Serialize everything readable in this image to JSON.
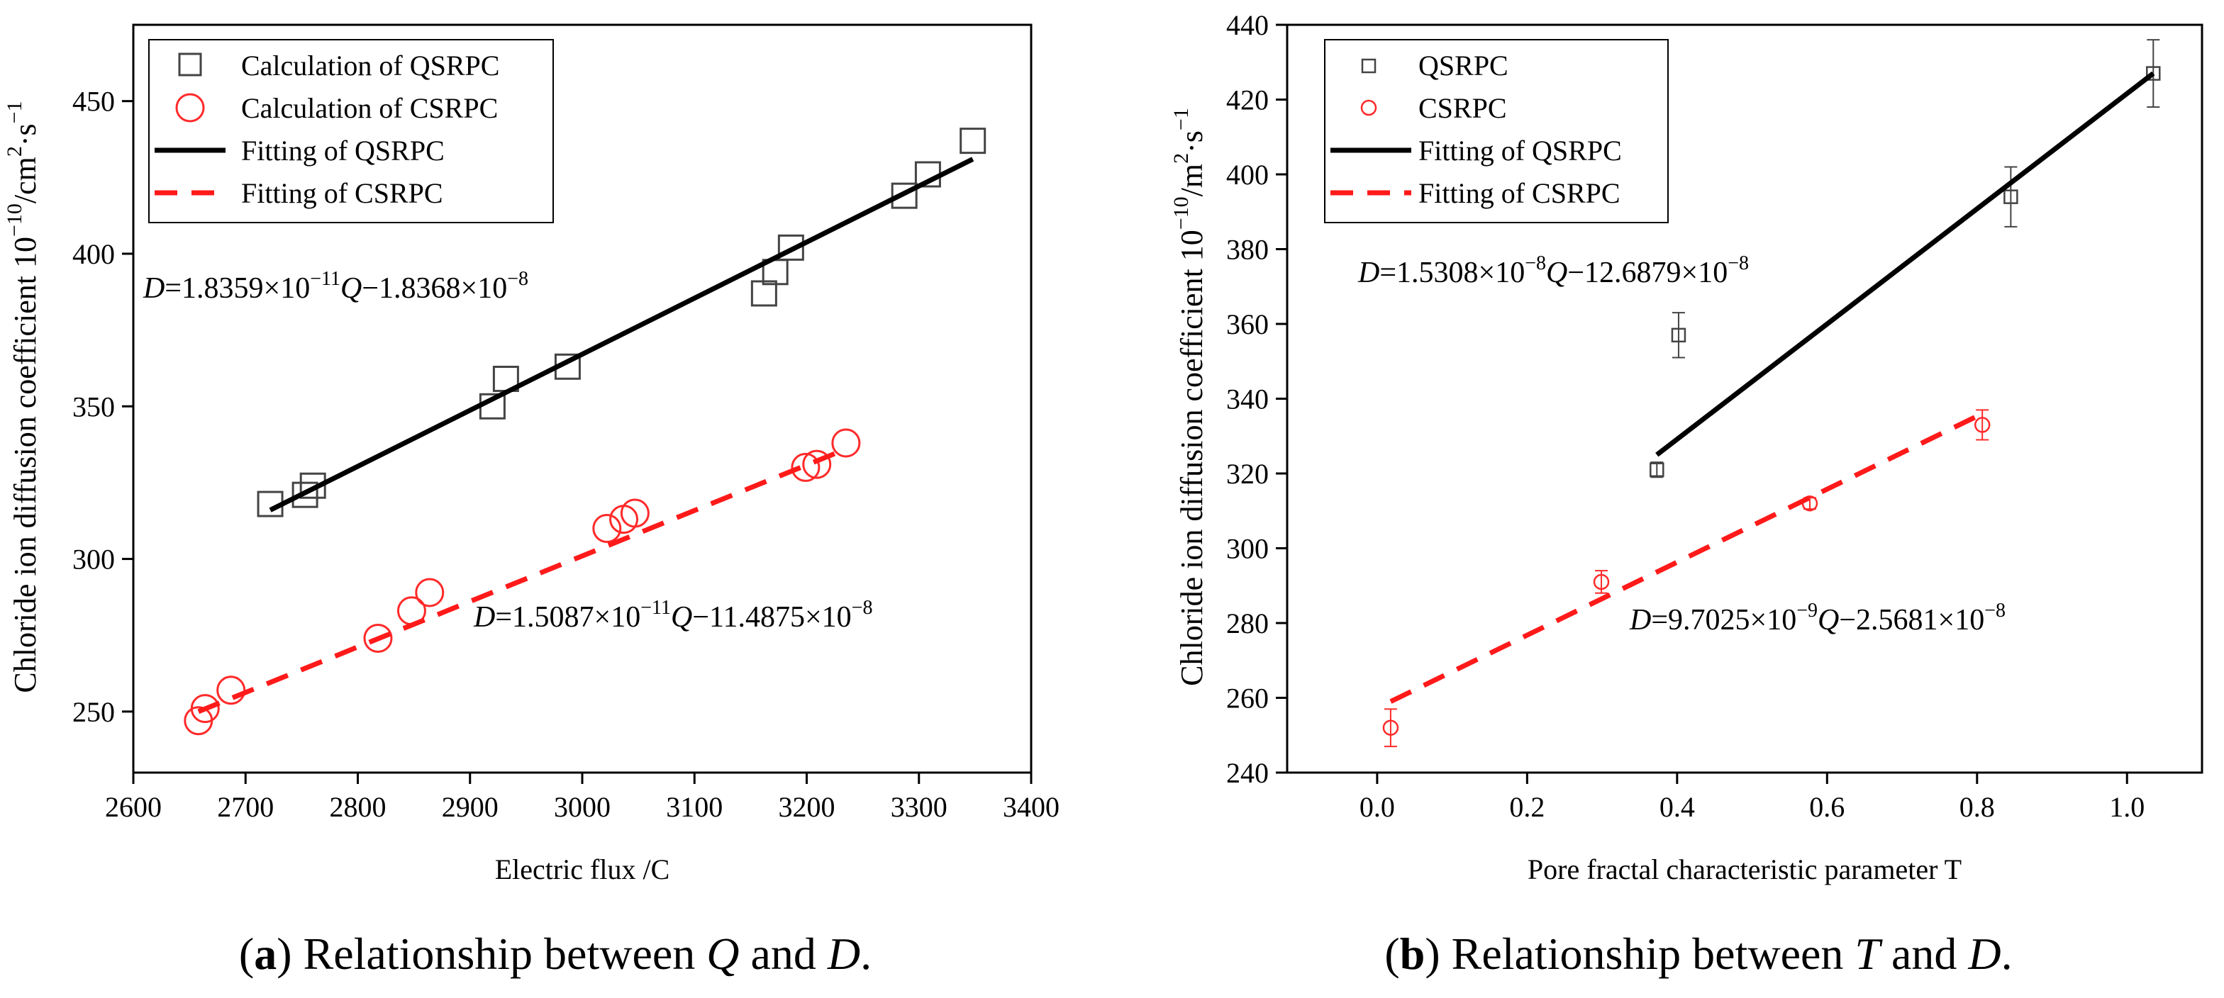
{
  "chart_data": [
    {
      "type": "scatter",
      "xlabel": "Electric flux /C",
      "ylabel_main": "Chloride ion diffusion coefficient 10",
      "ylabel_exp": "−10",
      "ylabel_unit": "/cm",
      "ylabel_unit_exp": "2",
      "ylabel_tail": "·s",
      "ylabel_tail_exp": "−1",
      "xlim": [
        2600,
        3400
      ],
      "ylim": [
        230,
        475
      ],
      "xticks": [
        2600,
        2700,
        2800,
        2900,
        3000,
        3100,
        3200,
        3300,
        3400
      ],
      "yticks": [
        250,
        300,
        350,
        400,
        450
      ],
      "legend": [
        "Calculation of QSRPC",
        "Calculation of CSRPC",
        "Fitting of QSRPC",
        "Fitting of CSRPC"
      ],
      "caption_letter": "a",
      "caption_text": ") Relationship between ",
      "caption_var1": "Q",
      "caption_mid": " and ",
      "caption_var2": "D",
      "caption_end": ".",
      "eq1": {
        "prefix": "D",
        "a": "=1.8359×10",
        "a_exp": "−11",
        "var": "Q",
        "b": "−1.8368×10",
        "b_exp": "−8"
      },
      "eq2": {
        "prefix": "D",
        "a": "=1.5087×10",
        "a_exp": "−11",
        "var": "Q",
        "b": "−11.4875×10",
        "b_exp": "−8"
      },
      "series": [
        {
          "name": "Calculation of QSRPC",
          "marker": "square",
          "color": "#444444",
          "x": [
            2722,
            2753,
            2760,
            2920,
            2932,
            2987,
            3162,
            3172,
            3186,
            3287,
            3308,
            3348
          ],
          "y": [
            318,
            321,
            324,
            350,
            359,
            363,
            387,
            394,
            402,
            419,
            426,
            437
          ]
        },
        {
          "name": "Calculation of CSRPC",
          "marker": "circle",
          "color": "#ff2a2a",
          "x": [
            2658,
            2664,
            2687,
            2818,
            2848,
            2864,
            3022,
            3037,
            3047,
            3199,
            3209,
            3235
          ],
          "y": [
            247,
            251,
            257,
            274,
            283,
            289,
            310,
            313,
            315,
            330,
            331,
            338
          ]
        },
        {
          "name": "Fitting of QSRPC",
          "line": "solid",
          "color": "#000000",
          "x": [
            2722,
            3348
          ],
          "y": [
            316,
            431
          ]
        },
        {
          "name": "Fitting of CSRPC",
          "line": "dashed",
          "color": "#ff1a1a",
          "x": [
            2658,
            3235
          ],
          "y": [
            250,
            336
          ]
        }
      ]
    },
    {
      "type": "scatter",
      "xlabel": "Pore fractal characteristic parameter T",
      "ylabel_main": "Chloride ion diffusion coefficient 10",
      "ylabel_exp": "−10",
      "ylabel_unit": "/m",
      "ylabel_unit_exp": "2",
      "ylabel_tail": "·s",
      "ylabel_tail_exp": "−1",
      "xlim": [
        -0.12,
        1.1
      ],
      "ylim": [
        240,
        440
      ],
      "xticks": [
        0.0,
        0.2,
        0.4,
        0.6,
        0.8,
        1.0
      ],
      "xtick_labels": [
        "0.0",
        "0.2",
        "0.4",
        "0.6",
        "0.8",
        "1.0"
      ],
      "yticks": [
        240,
        260,
        280,
        300,
        320,
        340,
        360,
        380,
        400,
        420,
        440
      ],
      "legend": [
        "QSRPC",
        "CSRPC",
        "Fitting of QSRPC",
        "Fitting of CSRPC"
      ],
      "caption_letter": "b",
      "caption_text": ") Relationship between ",
      "caption_var1": "T",
      "caption_mid": " and ",
      "caption_var2": "D",
      "caption_end": ".",
      "eq1": {
        "prefix": "D",
        "a": "=1.5308×10",
        "a_exp": "−8",
        "var": "Q",
        "b": "−12.6879×10",
        "b_exp": "−8"
      },
      "eq2": {
        "prefix": "D",
        "a": "=9.7025×10",
        "a_exp": "−9",
        "var": "Q",
        "b": "−2.5681×10",
        "b_exp": "−8"
      },
      "series": [
        {
          "name": "QSRPC",
          "marker": "square",
          "color": "#444444",
          "x": [
            0.373,
            0.402,
            0.845,
            1.035
          ],
          "y": [
            321,
            357,
            394,
            427
          ],
          "err": [
            2,
            6,
            8,
            9
          ]
        },
        {
          "name": "CSRPC",
          "marker": "circle",
          "color": "#ff2a2a",
          "x": [
            0.018,
            0.299,
            0.577,
            0.807
          ],
          "y": [
            252,
            291,
            312,
            333
          ],
          "err": [
            5,
            3,
            1.5,
            4
          ]
        },
        {
          "name": "Fitting of QSRPC",
          "line": "solid",
          "color": "#000000",
          "x": [
            0.373,
            1.035
          ],
          "y": [
            325,
            427
          ]
        },
        {
          "name": "Fitting of CSRPC",
          "line": "dashed",
          "color": "#ff1a1a",
          "x": [
            0.018,
            0.807
          ],
          "y": [
            259,
            336
          ]
        }
      ]
    }
  ]
}
